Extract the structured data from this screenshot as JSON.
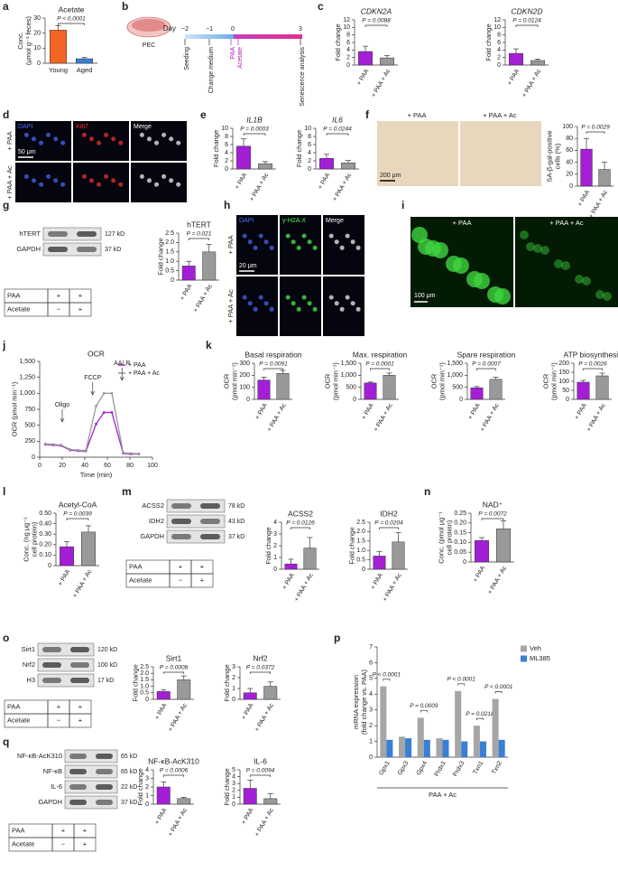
{
  "chart_data": [
    {
      "type": "bar",
      "panel": "a",
      "title": "Acetate",
      "ylabel": [
        "Conc.",
        "(μmol g⁻¹ feces)"
      ],
      "categories": [
        "Young",
        "Aged"
      ],
      "values": [
        22,
        3
      ],
      "errors": [
        3,
        0.8
      ],
      "colors": [
        "#f26522",
        "#3a7fd5"
      ],
      "ylim": [
        0,
        30
      ],
      "yticks": [
        0,
        10,
        20,
        30
      ],
      "pvalue": "P < 0.0001"
    },
    {
      "type": "bar",
      "panel": "c",
      "title": "CDKN2A",
      "title_italic": true,
      "ylabel": [
        "Fold change"
      ],
      "categories": [
        "+ PAA",
        "+ PAA + Ac"
      ],
      "values": [
        3.6,
        1.9
      ],
      "errors": [
        1.4,
        0.6
      ],
      "colors": [
        "#a31fd6",
        "#999999"
      ],
      "ylim": [
        0,
        12
      ],
      "yticks": [
        0,
        2,
        4,
        6,
        8,
        10,
        12
      ],
      "pvalue": "P = 0.0088"
    },
    {
      "type": "bar",
      "title": "CDKN2D",
      "title_italic": true,
      "ylabel": [
        "Fold change"
      ],
      "categories": [
        "+ PAA",
        "+ PAA + Ac"
      ],
      "values": [
        3.1,
        1.2
      ],
      "errors": [
        1.2,
        0.4
      ],
      "colors": [
        "#a31fd6",
        "#999999"
      ],
      "ylim": [
        0,
        12
      ],
      "yticks": [
        0,
        2,
        4,
        6,
        8,
        10,
        12
      ],
      "pvalue": "P = 0.0124"
    },
    {
      "type": "bar",
      "panel": "e",
      "title": "IL1B",
      "title_italic": true,
      "ylabel": [
        "Fold change"
      ],
      "categories": [
        "+ PAA",
        "+ PAA + Ac"
      ],
      "values": [
        5.6,
        1.3
      ],
      "errors": [
        1.8,
        0.5
      ],
      "colors": [
        "#a31fd6",
        "#999999"
      ],
      "ylim": [
        0,
        10
      ],
      "yticks": [
        0,
        2,
        4,
        6,
        8,
        10
      ],
      "pvalue": "P = 0.0003"
    },
    {
      "type": "bar",
      "title": "IL6",
      "title_italic": true,
      "ylabel": [
        "Fold change"
      ],
      "categories": [
        "+ PAA",
        "+ PAA + Ac"
      ],
      "values": [
        2.6,
        1.5
      ],
      "errors": [
        1.0,
        0.6
      ],
      "colors": [
        "#a31fd6",
        "#999999"
      ],
      "ylim": [
        0,
        10
      ],
      "yticks": [
        0,
        2,
        4,
        6,
        8,
        10
      ],
      "pvalue": "P = 0.0244"
    },
    {
      "type": "bar",
      "panel": "f",
      "ylabel": [
        "SA-β-gal-positive",
        "cells (%)"
      ],
      "categories": [
        "+ PAA",
        "+ PAA + Ac"
      ],
      "values": [
        62,
        28
      ],
      "errors": [
        18,
        12
      ],
      "colors": [
        "#a31fd6",
        "#999999"
      ],
      "ylim": [
        0,
        100
      ],
      "yticks": [
        0,
        20,
        40,
        60,
        80,
        100
      ],
      "pvalue": "P = 0.0029"
    },
    {
      "type": "bar",
      "panel": "g",
      "title": "hTERT",
      "ylabel": [
        "Fold change"
      ],
      "categories": [
        "+ PAA",
        "+ PAA + Ac"
      ],
      "values": [
        0.75,
        1.5
      ],
      "errors": [
        0.25,
        0.4
      ],
      "colors": [
        "#a31fd6",
        "#999999"
      ],
      "ylim": [
        0,
        2.5
      ],
      "yticks": [
        0,
        0.5,
        {
          "value": 1,
          "label": "1.0"
        },
        1.5,
        {
          "value": 2,
          "label": "2.0"
        },
        2.5
      ],
      "pvalue": "P = 0.021"
    },
    {
      "type": "line",
      "panel": "j",
      "title": "OCR",
      "xlabel": "Time (min)",
      "ylabel": [
        "OCR (pmol min⁻¹)"
      ],
      "x": [
        5,
        12,
        19,
        27,
        34,
        41,
        50,
        57,
        64,
        74,
        81,
        88
      ],
      "series": [
        {
          "name": "+ PAA",
          "color": "#a31fd6",
          "values": [
            200,
            190,
            180,
            110,
            100,
            95,
            520,
            700,
            700,
            60,
            50,
            50
          ]
        },
        {
          "name": "+ PAA + Ac",
          "color": "#999999",
          "values": [
            210,
            200,
            190,
            120,
            110,
            105,
            800,
            1000,
            1000,
            70,
            60,
            55
          ]
        }
      ],
      "xlim": [
        0,
        100
      ],
      "xticks": [
        0,
        20,
        40,
        60,
        80,
        100
      ],
      "ylim": [
        0,
        1500
      ],
      "yticks": [
        0,
        250,
        500,
        750,
        {
          "value": 1000,
          "label": "1,000"
        },
        {
          "value": 1250,
          "label": "1,250"
        },
        {
          "value": 1500,
          "label": "1,500"
        }
      ],
      "injections": [
        {
          "label": "Oligo",
          "x": 20
        },
        {
          "label": "FCCP",
          "x": 47
        },
        {
          "label": "AA/ R",
          "x": 73
        }
      ],
      "legend": "upper right"
    },
    {
      "type": "bar",
      "panel": "k",
      "title": "Basal respiration",
      "ylabel": [
        "OCR",
        "(pmol min⁻¹)"
      ],
      "categories": [
        "+ PAA",
        "+ PAA + Ac"
      ],
      "values": [
        160,
        215
      ],
      "errors": [
        25,
        25
      ],
      "colors": [
        "#a31fd6",
        "#999999"
      ],
      "ylim": [
        0,
        300
      ],
      "yticks": [
        0,
        100,
        200,
        300
      ],
      "pvalue": "P = 0.0091"
    },
    {
      "type": "bar",
      "title": "Max. respiration",
      "ylabel": [
        "OCR",
        "(pmol min⁻¹)"
      ],
      "categories": [
        "+ PAA",
        "+ PAA + Ac"
      ],
      "values": [
        680,
        1000
      ],
      "errors": [
        40,
        90
      ],
      "colors": [
        "#a31fd6",
        "#999999"
      ],
      "ylim": [
        0,
        1500
      ],
      "yticks": [
        0,
        500,
        {
          "value": 1000,
          "label": "1,000"
        },
        {
          "value": 1500,
          "label": "1,500"
        }
      ],
      "pvalue": "P = 0.0001"
    },
    {
      "type": "bar",
      "title": "Spare respiration",
      "ylabel": [
        "OCR",
        "(pmol min⁻¹)"
      ],
      "categories": [
        "+ PAA",
        "+ PAA + Ac"
      ],
      "values": [
        480,
        830
      ],
      "errors": [
        50,
        90
      ],
      "colors": [
        "#a31fd6",
        "#999999"
      ],
      "ylim": [
        0,
        1500
      ],
      "yticks": [
        0,
        500,
        {
          "value": 1000,
          "label": "1,000"
        },
        {
          "value": 1500,
          "label": "1,500"
        }
      ],
      "pvalue": "P = 0.0007"
    },
    {
      "type": "bar",
      "title": "ATP biosynthesis",
      "ylabel": [
        "OCR",
        "(pmol min⁻¹)"
      ],
      "categories": [
        "+ PAA",
        "+ PAA + Ac"
      ],
      "values": [
        95,
        130
      ],
      "errors": [
        10,
        15
      ],
      "colors": [
        "#a31fd6",
        "#999999"
      ],
      "ylim": [
        0,
        200
      ],
      "yticks": [
        0,
        50,
        100,
        150,
        200
      ],
      "pvalue": "P = 0.0026"
    },
    {
      "type": "bar",
      "panel": "l",
      "title": "Acetyl-CoA",
      "ylabel": [
        "Conc. (ng μg⁻¹",
        "cell protein)"
      ],
      "categories": [
        "+ PAA",
        "+ PAA + Ac"
      ],
      "values": [
        0.18,
        0.32
      ],
      "errors": [
        0.05,
        0.06
      ],
      "colors": [
        "#a31fd6",
        "#999999"
      ],
      "ylim": [
        0,
        0.5
      ],
      "yticks": [
        0,
        {
          "value": 0.1,
          "label": "0.10"
        },
        {
          "value": 0.2,
          "label": "0.20"
        },
        {
          "value": 0.3,
          "label": "0.30"
        },
        {
          "value": 0.4,
          "label": "0.40"
        },
        {
          "value": 0.5,
          "label": "0.50"
        }
      ],
      "pvalue": "P = 0.0039"
    },
    {
      "type": "bar",
      "panel": "m",
      "title": "ACSS2",
      "ylabel": [
        "Fold change"
      ],
      "categories": [
        "+ PAA",
        "+ PAA + Ac"
      ],
      "values": [
        0.45,
        1.8
      ],
      "errors": [
        0.4,
        0.9
      ],
      "colors": [
        "#a31fd6",
        "#999999"
      ],
      "ylim": [
        0,
        4
      ],
      "yticks": [
        0,
        1,
        2,
        3,
        4
      ],
      "pvalue": "P = 0.0126"
    },
    {
      "type": "bar",
      "title": "IDH2",
      "ylabel": [
        "Fold change"
      ],
      "categories": [
        "+ PAA",
        "+ PAA + Ac"
      ],
      "values": [
        0.7,
        1.45
      ],
      "errors": [
        0.25,
        0.5
      ],
      "colors": [
        "#a31fd6",
        "#999999"
      ],
      "ylim": [
        0,
        2.5
      ],
      "yticks": [
        0,
        0.5,
        {
          "value": 1,
          "label": "1.0"
        },
        1.5,
        {
          "value": 2,
          "label": "2.0"
        },
        2.5
      ],
      "pvalue": "P = 0.0204"
    },
    {
      "type": "bar",
      "panel": "n",
      "title": "NAD⁺",
      "ylabel": [
        "Conc. (pmol μg⁻¹",
        "cell protein)"
      ],
      "categories": [
        "+ PAA",
        "+ PAA + Ac"
      ],
      "values": [
        0.11,
        0.17
      ],
      "errors": [
        0.015,
        0.04
      ],
      "colors": [
        "#a31fd6",
        "#999999"
      ],
      "ylim": [
        0,
        0.25
      ],
      "yticks": [
        0,
        0.05,
        {
          "value": 0.1,
          "label": "0.10"
        },
        0.15,
        {
          "value": 0.2,
          "label": "0.20"
        },
        0.25
      ],
      "pvalue": "P = 0.0072"
    },
    {
      "type": "bar",
      "panel": "o",
      "title": "Sirt1",
      "ylabel": [
        "Fold change"
      ],
      "categories": [
        "+ PAA",
        "+ PAA + Ac"
      ],
      "values": [
        0.6,
        1.5
      ],
      "errors": [
        0.15,
        0.3
      ],
      "colors": [
        "#a31fd6",
        "#999999"
      ],
      "ylim": [
        0,
        2.5
      ],
      "yticks": [
        0,
        0.5,
        {
          "value": 1,
          "label": "1.0"
        },
        1.5,
        {
          "value": 2,
          "label": "2.0"
        },
        2.5
      ],
      "pvalue": "P = 0.0008"
    },
    {
      "type": "bar",
      "title": "Nrf2",
      "ylabel": [
        "Fold change"
      ],
      "categories": [
        "+ PAA",
        "+ PAA + Ac"
      ],
      "values": [
        0.6,
        1.2
      ],
      "errors": [
        0.4,
        0.4
      ],
      "colors": [
        "#a31fd6",
        "#999999"
      ],
      "ylim": [
        0,
        3
      ],
      "yticks": [
        0,
        1,
        2,
        3
      ],
      "pvalue": "P = 0.0372"
    },
    {
      "type": "grouped_bar",
      "panel": "p",
      "ylabel": [
        "mRNA expression",
        "(fold change vs. PAA)"
      ],
      "xlabel": "PAA + Ac",
      "categories": [
        "Gpx1",
        "Gpx3",
        "Gpx4",
        "Prdx1",
        "Prdx3",
        "Txn1",
        "Txn2"
      ],
      "series": [
        {
          "name": "Veh",
          "color": "#a6a6a6",
          "values": [
            4.5,
            1.3,
            2.5,
            1.2,
            4.2,
            2.0,
            3.7
          ]
        },
        {
          "name": "ML385",
          "color": "#3a7fd5",
          "values": [
            1.1,
            1.2,
            1.1,
            1.1,
            1.0,
            1.0,
            1.1
          ]
        }
      ],
      "ylim": [
        0,
        7
      ],
      "yticks": [
        0,
        1,
        2,
        3,
        4,
        5,
        6,
        7
      ],
      "pvalues": [
        "P < 0.0001",
        null,
        "P = 0.0009",
        null,
        "P < 0.0001",
        "P = 0.0218",
        "P < 0.0001"
      ],
      "legend": "upper right"
    },
    {
      "type": "bar",
      "panel": "q",
      "title": "NF-κB-AcK310",
      "ylabel": [
        "Fold change"
      ],
      "categories": [
        "+ PAA",
        "+ PAA + Ac"
      ],
      "values": [
        2.0,
        0.65
      ],
      "errors": [
        0.6,
        0.15
      ],
      "colors": [
        "#a31fd6",
        "#999999"
      ],
      "ylim": [
        0,
        4
      ],
      "yticks": [
        0,
        1,
        2,
        3,
        4
      ],
      "pvalue": "P = 0.0006"
    },
    {
      "type": "bar",
      "title": "IL-6",
      "ylabel": [
        "Fold change"
      ],
      "categories": [
        "+ PAA",
        "+ PAA + Ac"
      ],
      "values": [
        2.3,
        0.8
      ],
      "errors": [
        1.2,
        0.7
      ],
      "colors": [
        "#a31fd6",
        "#999999"
      ],
      "ylim": [
        0,
        5
      ],
      "yticks": [
        0,
        1,
        2,
        3,
        4,
        5
      ],
      "pvalue": "P = 0.0094"
    }
  ],
  "figure": {
    "b": {
      "letter": "b",
      "dish": "PEC",
      "day": "Day",
      "days": [
        "−2",
        "−1",
        "0",
        "3"
      ],
      "events": [
        "Seeding",
        "Change medium",
        "PAA",
        "Acetate",
        "Senescence analysis"
      ]
    },
    "d": {
      "letter": "d",
      "channels": [
        "DAPI",
        "Ki67",
        "Merge"
      ],
      "rows": [
        "+ PAA",
        "+ PAA + Ac"
      ],
      "scale": "50 μm"
    },
    "f": {
      "images": [
        "+ PAA",
        "+ PAA + Ac"
      ],
      "scale": "200 μm"
    },
    "g": {
      "bands": [
        {
          "name": "hTERT",
          "size": "127 kD"
        },
        {
          "name": "GAPDH",
          "size": "37 kD"
        }
      ],
      "table": [
        [
          "PAA",
          "+",
          "+"
        ],
        [
          "Acetate",
          "−",
          "+"
        ]
      ]
    },
    "h": {
      "letter": "h",
      "channels": [
        "DAPI",
        "γ-H2A.X",
        "Merge"
      ],
      "rows": [
        "+ PAA",
        "+ PAA + Ac"
      ],
      "scale": "20 μm"
    },
    "i": {
      "letter": "i",
      "images": [
        "+ PAA",
        "+ PAA + Ac"
      ],
      "scale": "100 μm"
    },
    "m": {
      "bands": [
        {
          "name": "ACSS2",
          "size": "78 kD"
        },
        {
          "name": "IDH2",
          "size": "43 kD"
        },
        {
          "name": "GAPDH",
          "size": "37 kD"
        }
      ],
      "table": [
        [
          "PAA",
          "+",
          "+"
        ],
        [
          "Acetate",
          "−",
          "+"
        ]
      ]
    },
    "o": {
      "bands": [
        {
          "name": "Sirt1",
          "size": "120 kD"
        },
        {
          "name": "Nrf2",
          "size": "100 kD"
        },
        {
          "name": "H3",
          "size": "17 kD"
        }
      ],
      "table": [
        [
          "PAA",
          "+",
          "+"
        ],
        [
          "Acetate",
          "−",
          "+"
        ]
      ]
    },
    "q": {
      "bands": [
        {
          "name": "NF-κB-AcK310",
          "size": "65 kD"
        },
        {
          "name": "NF-κB",
          "size": "65 kD"
        },
        {
          "name": "IL-6",
          "size": "22 kD"
        },
        {
          "name": "GAPDH",
          "size": "37 kD"
        }
      ],
      "table": [
        [
          "PAA",
          "+",
          "+"
        ],
        [
          "Acetate",
          "−",
          "+"
        ]
      ]
    }
  }
}
